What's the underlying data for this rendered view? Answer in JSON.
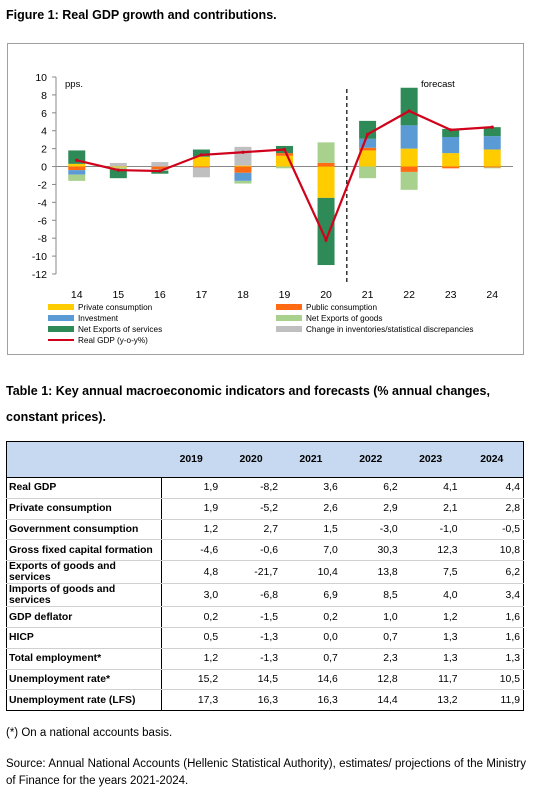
{
  "figure": {
    "title": "Figure 1: Real GDP growth and contributions."
  },
  "chart_data": {
    "type": "bar",
    "stacked": true,
    "unit_label": "pps.",
    "annotation": "forecast",
    "forecast_divider_after": "20",
    "categories": [
      "14",
      "15",
      "16",
      "17",
      "18",
      "19",
      "20",
      "21",
      "22",
      "23",
      "24"
    ],
    "yticks": [
      10,
      8,
      6,
      4,
      2,
      0,
      -2,
      -4,
      -6,
      -8,
      -10,
      -12
    ],
    "ylim": [
      -12,
      10
    ],
    "grid": false,
    "legend_position": "bottom",
    "series": [
      {
        "name": "Private consumption",
        "color": "#ffcc00",
        "values": [
          0.3,
          -0.1,
          0.0,
          1.1,
          0.1,
          1.2,
          -3.5,
          1.8,
          2.0,
          1.5,
          1.9
        ]
      },
      {
        "name": "Public consumption",
        "color": "#ff6a13",
        "values": [
          -0.4,
          0.0,
          -0.3,
          -0.1,
          -0.7,
          0.3,
          0.4,
          0.3,
          -0.6,
          -0.2,
          -0.1
        ]
      },
      {
        "name": "Investment",
        "color": "#5b9bd5",
        "values": [
          -0.5,
          0.0,
          0.0,
          0.0,
          -0.9,
          0.0,
          0.0,
          1.0,
          2.6,
          1.8,
          1.5
        ]
      },
      {
        "name": "Net Exports of goods",
        "color": "#a9d18e",
        "values": [
          -0.7,
          -0.2,
          -0.2,
          0.0,
          -0.3,
          -0.2,
          2.3,
          -1.3,
          -2.0,
          0.0,
          -0.1
        ]
      },
      {
        "name": "Net Exports of services",
        "color": "#2e8b57",
        "values": [
          1.5,
          -1.0,
          -0.3,
          0.8,
          0.0,
          0.8,
          -7.5,
          2.0,
          4.2,
          0.9,
          1.0
        ]
      },
      {
        "name": "Change in inventories/statistical discrepancies",
        "color": "#bfbfbf",
        "values": [
          0.0,
          0.4,
          0.5,
          -1.1,
          2.1,
          0.0,
          0.0,
          0.0,
          0.0,
          0.0,
          0.0
        ]
      }
    ],
    "line": {
      "name": "Real GDP (y-o-y%)",
      "color": "#d0021b",
      "values": [
        0.7,
        -0.4,
        -0.5,
        1.3,
        1.6,
        1.9,
        -8.2,
        3.6,
        6.2,
        4.1,
        4.4
      ]
    },
    "legend_order": [
      0,
      1,
      2,
      3,
      4,
      5,
      6
    ]
  },
  "table": {
    "title": "Table 1: Key annual macroeconomic indicators and forecasts (% annual changes, constant prices).",
    "headers": [
      "",
      "2019",
      "2020",
      "2021",
      "2022",
      "2023",
      "2024"
    ],
    "rows": [
      [
        "Real GDP",
        "1,9",
        "-8,2",
        "3,6",
        "6,2",
        "4,1",
        "4,4"
      ],
      [
        "Private consumption",
        "1,9",
        "-5,2",
        "2,6",
        "2,9",
        "2,1",
        "2,8"
      ],
      [
        "Government consumption",
        "1,2",
        "2,7",
        "1,5",
        "-3,0",
        "-1,0",
        "-0,5"
      ],
      [
        "Gross fixed capital formation",
        "-4,6",
        "-0,6",
        "7,0",
        "30,3",
        "12,3",
        "10,8"
      ],
      [
        "Exports of goods and services",
        "4,8",
        "-21,7",
        "10,4",
        "13,8",
        "7,5",
        "6,2"
      ],
      [
        "Imports of goods and services",
        "3,0",
        "-6,8",
        "6,9",
        "8,5",
        "4,0",
        "3,4"
      ],
      [
        "GDP deflator",
        "0,2",
        "-1,5",
        "0,2",
        "1,0",
        "1,2",
        "1,6"
      ],
      [
        "HICP",
        "0,5",
        "-1,3",
        "0,0",
        "0,7",
        "1,3",
        "1,6"
      ],
      [
        "Total employment*",
        "1,2",
        "-1,3",
        "0,7",
        "2,3",
        "1,3",
        "1,3"
      ],
      [
        "Unemployment rate*",
        "15,2",
        "14,5",
        "14,6",
        "12,8",
        "11,7",
        "10,5"
      ],
      [
        "Unemployment rate (LFS)",
        "17,3",
        "16,3",
        "16,3",
        "14,4",
        "13,2",
        "11,9"
      ]
    ]
  },
  "footnote": "(*) On a national accounts basis.",
  "source": "Source: Annual National Accounts (Hellenic Statistical Authority), estimates/ projections of the Ministry of Finance for the years 2021-2024."
}
